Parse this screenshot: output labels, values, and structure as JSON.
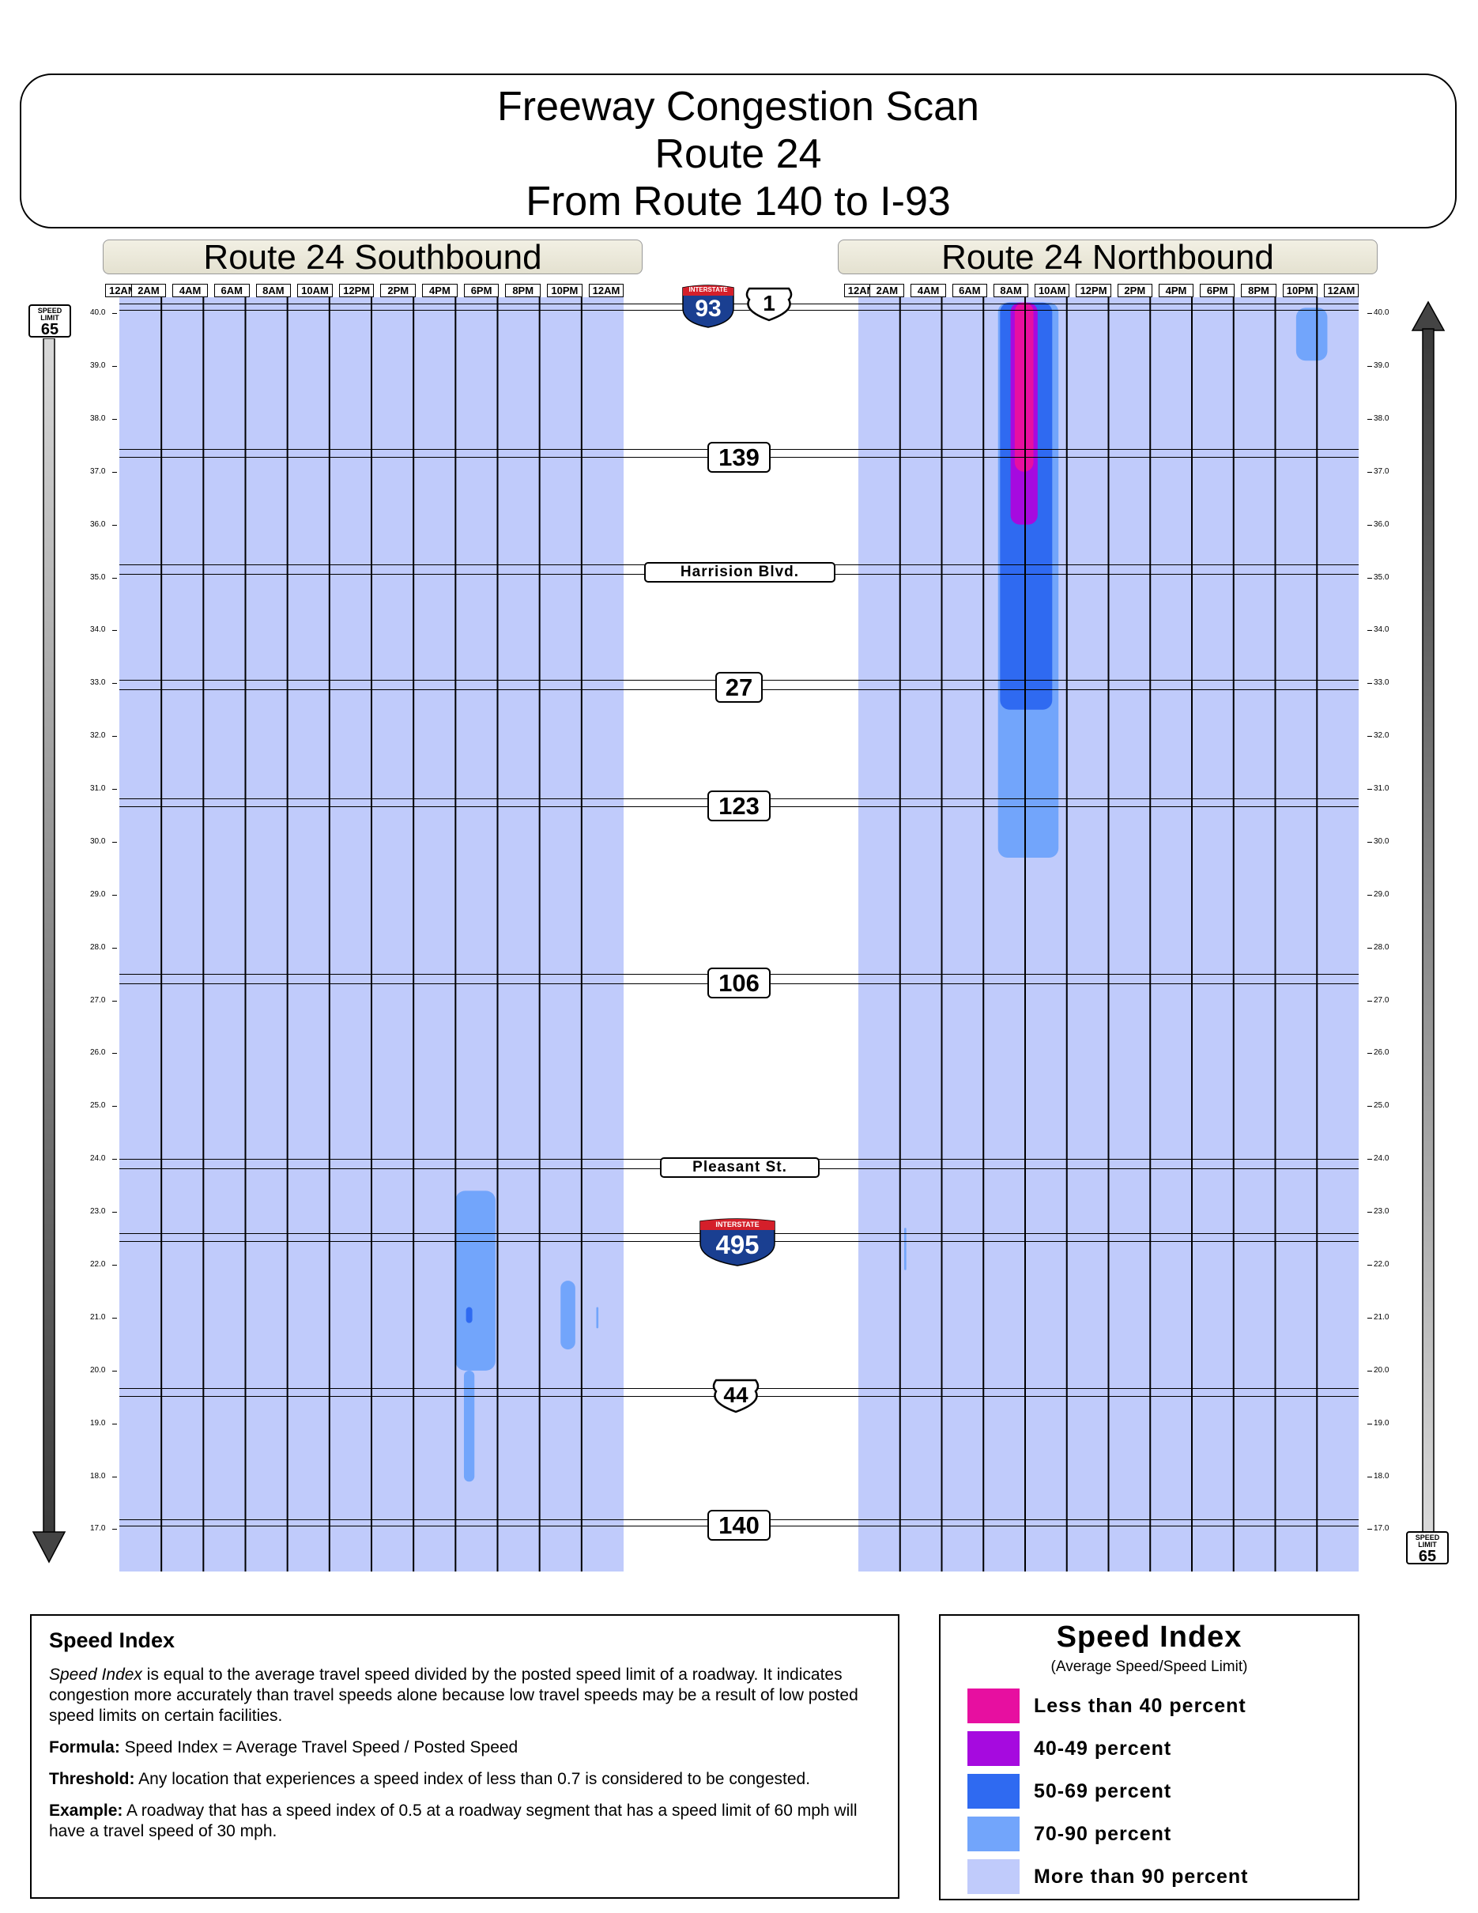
{
  "title": {
    "line1": "Freeway Congestion Scan",
    "line2": "Route 24",
    "line3": "From Route 140 to I-93"
  },
  "southbound": {
    "header": "Route 24 Southbound"
  },
  "northbound": {
    "header": "Route 24 Northbound"
  },
  "time_labels": [
    "12AM",
    "2AM",
    "4AM",
    "6AM",
    "8AM",
    "10AM",
    "12PM",
    "2PM",
    "4PM",
    "6PM",
    "8PM",
    "10PM",
    "12AM"
  ],
  "mileposts": [
    "40.0",
    "39.0",
    "38.0",
    "37.0",
    "36.0",
    "35.0",
    "34.0",
    "33.0",
    "32.0",
    "31.0",
    "30.0",
    "29.0",
    "28.0",
    "27.0",
    "26.0",
    "25.0",
    "24.0",
    "23.0",
    "22.0",
    "21.0",
    "20.0",
    "19.0",
    "18.0",
    "17.0"
  ],
  "speed_limit": {
    "label": "SPEED LIMIT",
    "value": "65"
  },
  "interchanges": {
    "i93": {
      "banner": "INTERSTATE",
      "number": "93"
    },
    "us1": "1",
    "r139": "139",
    "harrision": "Harrision Blvd.",
    "r27": "27",
    "r123": "123",
    "r106": "106",
    "pleasant": "Pleasant St.",
    "i495": {
      "banner": "INTERSTATE",
      "number": "495"
    },
    "r44": "44",
    "r140": "140"
  },
  "description": {
    "heading": "Speed Index",
    "p1_em": "Speed Index",
    "p1_rest": " is equal to the average travel speed divided by the posted speed limit of a roadway. It indicates congestion more accurately than travel speeds alone because low travel speeds may be a result of low posted speed limits on certain facilities.",
    "formula_label": "Formula:",
    "formula_text": " Speed Index = Average Travel Speed / Posted Speed",
    "threshold_label": "Threshold:",
    "threshold_text": " Any location that experiences a speed index of less than 0.7 is considered to be congested.",
    "example_label": "Example:",
    "example_text": " A roadway that has a speed index of 0.5 at a roadway segment that has a speed limit of 60 mph will have a travel speed of 30 mph."
  },
  "legend": {
    "title": "Speed Index",
    "subtitle": "(Average Speed/Speed Limit)",
    "items": [
      {
        "label": "Less than 40 percent",
        "color": "#e70fa0"
      },
      {
        "label": "40-49 percent",
        "color": "#a60adf"
      },
      {
        "label": "50-69 percent",
        "color": "#2f6af1"
      },
      {
        "label": "70-90 percent",
        "color": "#72a5fb"
      },
      {
        "label": "More than 90 percent",
        "color": "#c0cbfb"
      }
    ]
  },
  "chart_data": {
    "type": "heatmap",
    "x_axis": {
      "start": "12AM",
      "end": "12AM",
      "unit": "hour",
      "range": [
        0,
        24
      ]
    },
    "y_axis": {
      "unit": "milepost",
      "range": [
        16.2,
        40.3
      ]
    },
    "categories": [
      "Less than 40 percent",
      "40-49 percent",
      "50-69 percent",
      "70-90 percent",
      "More than 90 percent"
    ],
    "background_category": "More than 90 percent",
    "southbound_regions": [
      {
        "category": "70-90 percent",
        "hour_start": 16.0,
        "hour_end": 17.9,
        "mile_start": 20.0,
        "mile_end": 23.4
      },
      {
        "category": "70-90 percent",
        "hour_start": 16.4,
        "hour_end": 16.9,
        "mile_start": 17.9,
        "mile_end": 20.0
      },
      {
        "category": "50-69 percent",
        "hour_start": 16.5,
        "hour_end": 16.8,
        "mile_start": 20.9,
        "mile_end": 21.2
      },
      {
        "category": "70-90 percent",
        "hour_start": 21.0,
        "hour_end": 21.7,
        "mile_start": 20.4,
        "mile_end": 21.7
      },
      {
        "category": "70-90 percent",
        "hour_start": 22.7,
        "hour_end": 22.8,
        "mile_start": 20.8,
        "mile_end": 21.2
      }
    ],
    "northbound_regions": [
      {
        "category": "70-90 percent",
        "hour_start": 6.7,
        "hour_end": 9.6,
        "mile_start": 29.7,
        "mile_end": 40.2
      },
      {
        "category": "50-69 percent",
        "hour_start": 6.8,
        "hour_end": 9.3,
        "mile_start": 32.5,
        "mile_end": 40.2
      },
      {
        "category": "40-49 percent",
        "hour_start": 7.3,
        "hour_end": 8.6,
        "mile_start": 36.0,
        "mile_end": 40.2
      },
      {
        "category": "Less than 40 percent",
        "hour_start": 7.5,
        "hour_end": 8.4,
        "mile_start": 37.0,
        "mile_end": 40.2
      },
      {
        "category": "70-90 percent",
        "hour_start": 21.0,
        "hour_end": 22.5,
        "mile_start": 39.1,
        "mile_end": 40.1
      },
      {
        "category": "70-90 percent",
        "hour_start": 2.2,
        "hour_end": 2.3,
        "mile_start": 21.9,
        "mile_end": 22.7
      }
    ]
  }
}
